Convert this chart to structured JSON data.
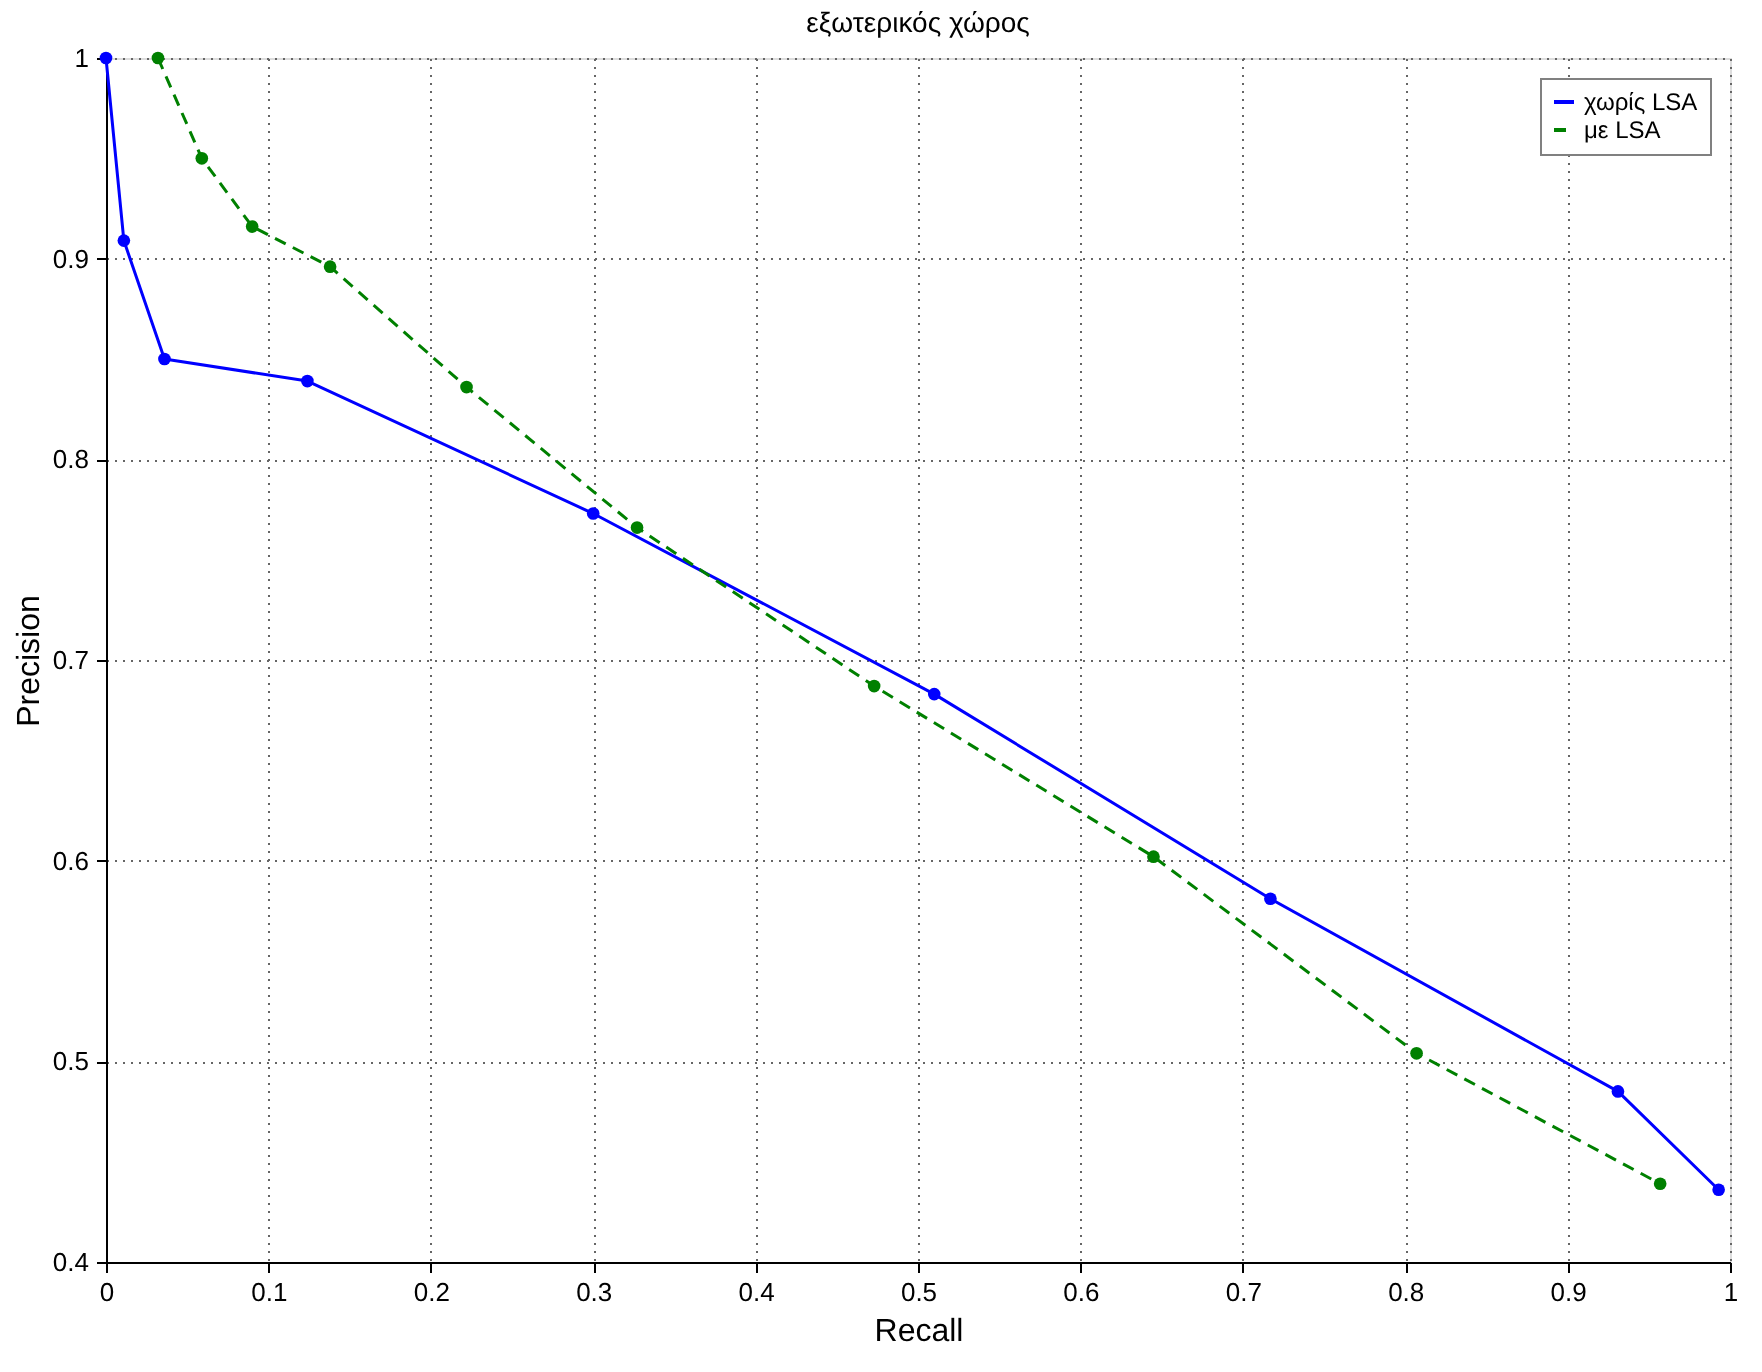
{
  "chart_data": {
    "type": "line",
    "title": "εξωτερικός χώρος",
    "xlabel": "Recall",
    "ylabel": "Precision",
    "xlim": [
      0,
      1
    ],
    "ylim": [
      0.4,
      1
    ],
    "xticks": [
      0,
      0.1,
      0.2,
      0.3,
      0.4,
      0.5,
      0.6,
      0.7,
      0.8,
      0.9,
      1
    ],
    "yticks": [
      0.4,
      0.5,
      0.6,
      0.7,
      0.8,
      0.9,
      1
    ],
    "grid": true,
    "legend": "top right",
    "marker": "circle",
    "series": [
      {
        "name": "χωρίς LSA",
        "color": "#0000ff",
        "line_style": "solid",
        "x": [
          0,
          0.011,
          0.036,
          0.124,
          0.3,
          0.51,
          0.717,
          0.931,
          0.993
        ],
        "values": [
          1.0,
          0.909,
          0.85,
          0.839,
          0.773,
          0.683,
          0.581,
          0.485,
          0.436
        ]
      },
      {
        "name": "με LSA",
        "color": "#008000",
        "line_style": "dashed",
        "x": [
          0.032,
          0.059,
          0.09,
          0.138,
          0.222,
          0.327,
          0.473,
          0.645,
          0.807,
          0.957
        ],
        "values": [
          1.0,
          0.95,
          0.916,
          0.896,
          0.836,
          0.766,
          0.687,
          0.602,
          0.504,
          0.439
        ]
      }
    ]
  }
}
